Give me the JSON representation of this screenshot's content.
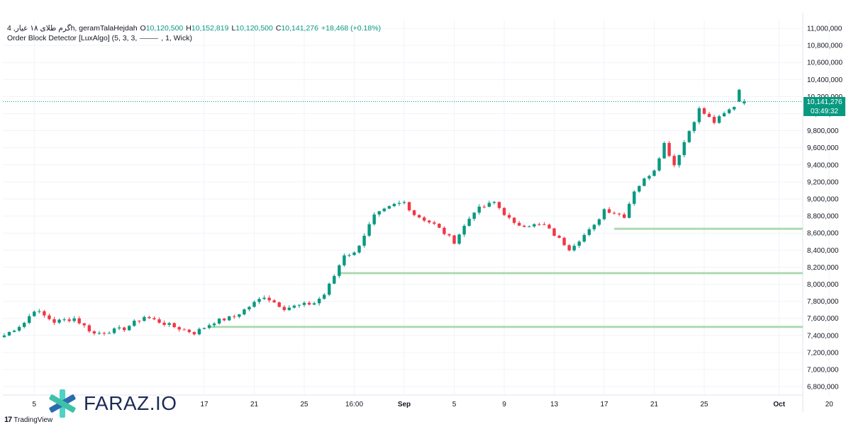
{
  "legend": {
    "symbol": "گرم طلای ۱۸ عیار, 4h, geramTalaHejdah",
    "o_label": "O",
    "o_value": "10,120,500",
    "h_label": "H",
    "h_value": "10,152,819",
    "l_label": "L",
    "l_value": "10,120,500",
    "c_label": "C",
    "c_value": "10,141,276",
    "change": "+18,468 (+0.18%)",
    "indicator_name": "Order Block Detector [LuxAlgo] (5, 3, 3,",
    "indicator_suffix": ", 1, Wick)"
  },
  "price_tag": {
    "price": "10,141,276",
    "countdown": "03:49:32"
  },
  "watermark": {
    "text": "FARAZ.IO"
  },
  "tradingview": {
    "brand": "TradingView"
  },
  "colors": {
    "up": "#089981",
    "down": "#f23645",
    "order_block": "#a5d6a7",
    "accent": "#1c2a55"
  },
  "chart_data": {
    "type": "candlestick",
    "y_axis_ticks": [
      "11,000,000",
      "10,800,000",
      "10,600,000",
      "10,400,000",
      "10,200,000",
      "10,000,000",
      "9,800,000",
      "9,600,000",
      "9,400,000",
      "9,200,000",
      "9,000,000",
      "8,800,000",
      "8,600,000",
      "8,400,000",
      "8,200,000",
      "8,000,000",
      "7,800,000",
      "7,600,000",
      "7,400,000",
      "7,200,000",
      "7,000,000",
      "6,800,000"
    ],
    "y_axis_values": [
      11000000,
      10800000,
      10600000,
      10400000,
      10200000,
      10000000,
      9800000,
      9600000,
      9400000,
      9200000,
      9000000,
      8800000,
      8600000,
      8400000,
      8200000,
      8000000,
      7800000,
      7600000,
      7400000,
      7200000,
      7000000,
      6800000
    ],
    "ylim": [
      6700000,
      11100000
    ],
    "x_axis_ticks": [
      "5",
      "17",
      "21",
      "25",
      "16:00",
      "Sep",
      "5",
      "9",
      "13",
      "17",
      "21",
      "25",
      "Oct",
      "20"
    ],
    "x_axis_tick_index": [
      6,
      40,
      50,
      60,
      70,
      80,
      90,
      100,
      110,
      120,
      130,
      140,
      155,
      165
    ],
    "order_blocks": [
      {
        "level": 7500000,
        "start_index": 41
      },
      {
        "level": 8130000,
        "start_index": 67
      },
      {
        "level": 8650000,
        "start_index": 122
      }
    ],
    "last_price": 10141276,
    "anchors": [
      [
        0,
        7400000
      ],
      [
        4,
        7550000
      ],
      [
        6,
        7700000
      ],
      [
        10,
        7560000
      ],
      [
        14,
        7600000
      ],
      [
        18,
        7420000
      ],
      [
        24,
        7480000
      ],
      [
        28,
        7620000
      ],
      [
        34,
        7500000
      ],
      [
        38,
        7430000
      ],
      [
        42,
        7560000
      ],
      [
        46,
        7620000
      ],
      [
        50,
        7780000
      ],
      [
        52,
        7860000
      ],
      [
        56,
        7720000
      ],
      [
        62,
        7780000
      ],
      [
        64,
        7880000
      ],
      [
        66,
        8100000
      ],
      [
        68,
        8350000
      ],
      [
        70,
        8360000
      ],
      [
        74,
        8800000
      ],
      [
        78,
        8930000
      ],
      [
        80,
        8960000
      ],
      [
        82,
        8820000
      ],
      [
        86,
        8700000
      ],
      [
        90,
        8500000
      ],
      [
        94,
        8860000
      ],
      [
        98,
        8960000
      ],
      [
        102,
        8700000
      ],
      [
        108,
        8690000
      ],
      [
        113,
        8420000
      ],
      [
        118,
        8680000
      ],
      [
        120,
        8880000
      ],
      [
        124,
        8800000
      ],
      [
        126,
        9100000
      ],
      [
        130,
        9350000
      ],
      [
        132,
        9650000
      ],
      [
        134,
        9400000
      ],
      [
        137,
        9800000
      ],
      [
        139,
        10050000
      ],
      [
        142,
        9900000
      ],
      [
        146,
        10090000
      ],
      [
        148,
        10141276
      ]
    ]
  }
}
